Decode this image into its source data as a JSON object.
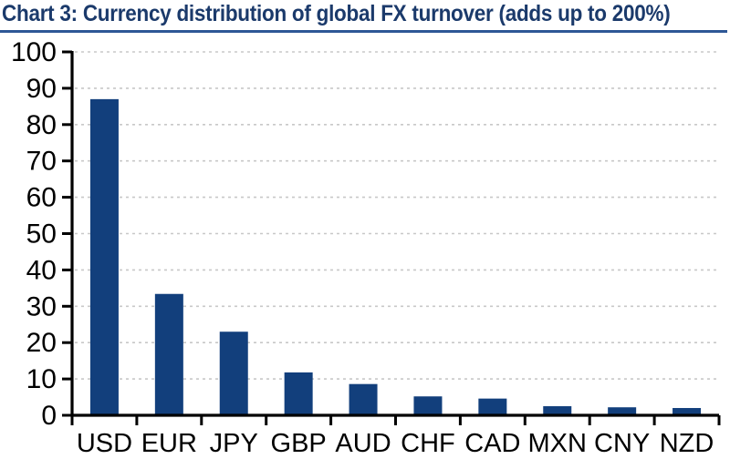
{
  "header": {
    "title": "Chart 3: Currency distribution of global FX turnover (adds up to 200%)",
    "title_color": "#1b3a6b",
    "underline_color": "#2e5796"
  },
  "chart_data": {
    "type": "bar",
    "title": "Chart 3: Currency distribution of global FX turnover (adds up to 200%)",
    "categories": [
      "USD",
      "EUR",
      "JPY",
      "GBP",
      "AUD",
      "CHF",
      "CAD",
      "MXN",
      "CNY",
      "NZD"
    ],
    "values": [
      87.0,
      33.4,
      23.0,
      11.8,
      8.6,
      5.2,
      4.6,
      2.5,
      2.2,
      2.0
    ],
    "xlabel": "",
    "ylabel": "",
    "ylim": [
      0,
      100
    ],
    "ytick_labels": [
      "0",
      "10",
      "20",
      "30",
      "40",
      "50",
      "60",
      "70",
      "80",
      "90",
      "100"
    ],
    "grid": "horizontal-dashed",
    "legend": "none",
    "bar_color": "#123f7c",
    "axis_color": "#000000",
    "grid_color": "#c8c8c8",
    "tick_label_color": "#000000"
  }
}
